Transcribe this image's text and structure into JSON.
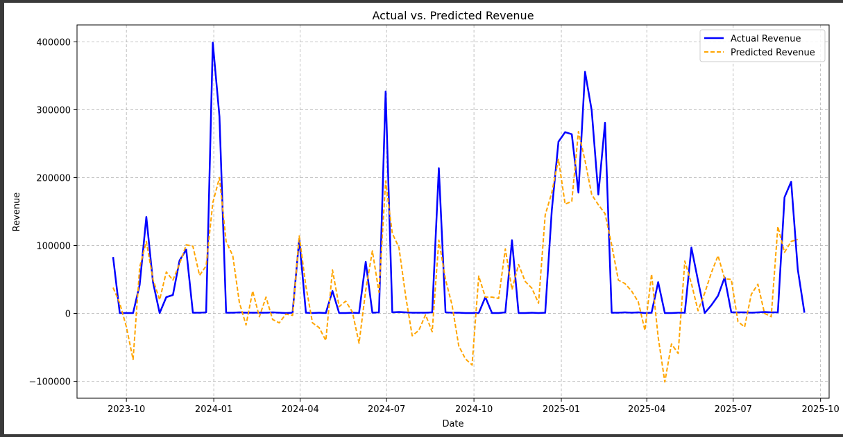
{
  "chart_data": {
    "type": "line",
    "title": "Actual vs. Predicted Revenue",
    "xlabel": "Date",
    "ylabel": "Revenue",
    "x_ticks": [
      "2023-10",
      "2024-01",
      "2024-04",
      "2024-07",
      "2024-10",
      "2025-01",
      "2025-04",
      "2025-07",
      "2025-10"
    ],
    "y_ticks": [
      -100000,
      0,
      100000,
      200000,
      300000,
      400000
    ],
    "y_tick_labels": [
      "−100000",
      "0",
      "100000",
      "200000",
      "300000",
      "400000"
    ],
    "xlim": [
      "2023-08-10",
      "2025-10-10"
    ],
    "ylim": [
      -125000,
      425000
    ],
    "grid": true,
    "legend_position": "top-right",
    "series": [
      {
        "name": "Actual Revenue",
        "color": "#0000ff",
        "style": "solid",
        "points": [
          [
            "2023-09-17",
            83000
          ],
          [
            "2023-09-24",
            500
          ],
          [
            "2023-10-01",
            500
          ],
          [
            "2023-10-08",
            500
          ],
          [
            "2023-10-15",
            42000
          ],
          [
            "2023-10-22",
            142000
          ],
          [
            "2023-10-29",
            46000
          ],
          [
            "2023-11-05",
            500
          ],
          [
            "2023-11-12",
            24000
          ],
          [
            "2023-11-19",
            27000
          ],
          [
            "2023-11-26",
            78000
          ],
          [
            "2023-12-03",
            94000
          ],
          [
            "2023-12-10",
            1000
          ],
          [
            "2023-12-17",
            1000
          ],
          [
            "2023-12-24",
            1500
          ],
          [
            "2023-12-31",
            399000
          ],
          [
            "2024-01-07",
            290000
          ],
          [
            "2024-01-14",
            1000
          ],
          [
            "2024-01-21",
            1000
          ],
          [
            "2024-01-28",
            1500
          ],
          [
            "2024-02-04",
            1000
          ],
          [
            "2024-02-11",
            1000
          ],
          [
            "2024-02-18",
            1000
          ],
          [
            "2024-02-25",
            1000
          ],
          [
            "2024-03-03",
            1500
          ],
          [
            "2024-03-10",
            1000
          ],
          [
            "2024-03-17",
            500
          ],
          [
            "2024-03-24",
            1000
          ],
          [
            "2024-03-31",
            110000
          ],
          [
            "2024-04-07",
            1000
          ],
          [
            "2024-04-14",
            500
          ],
          [
            "2024-04-21",
            1000
          ],
          [
            "2024-04-28",
            500
          ],
          [
            "2024-05-05",
            33000
          ],
          [
            "2024-05-12",
            500
          ],
          [
            "2024-05-19",
            500
          ],
          [
            "2024-05-26",
            1000
          ],
          [
            "2024-06-02",
            500
          ],
          [
            "2024-06-09",
            76000
          ],
          [
            "2024-06-16",
            1000
          ],
          [
            "2024-06-23",
            1500
          ],
          [
            "2024-06-30",
            327000
          ],
          [
            "2024-07-07",
            1500
          ],
          [
            "2024-07-14",
            2000
          ],
          [
            "2024-07-21",
            1500
          ],
          [
            "2024-07-28",
            1000
          ],
          [
            "2024-08-04",
            1000
          ],
          [
            "2024-08-11",
            1000
          ],
          [
            "2024-08-18",
            1500
          ],
          [
            "2024-08-25",
            214000
          ],
          [
            "2024-09-01",
            1500
          ],
          [
            "2024-09-08",
            1000
          ],
          [
            "2024-09-15",
            1000
          ],
          [
            "2024-09-22",
            500
          ],
          [
            "2024-09-29",
            500
          ],
          [
            "2024-10-06",
            500
          ],
          [
            "2024-10-13",
            24000
          ],
          [
            "2024-10-20",
            500
          ],
          [
            "2024-10-27",
            500
          ],
          [
            "2024-11-03",
            1500
          ],
          [
            "2024-11-10",
            108000
          ],
          [
            "2024-11-17",
            500
          ],
          [
            "2024-11-24",
            500
          ],
          [
            "2024-12-01",
            1000
          ],
          [
            "2024-12-08",
            500
          ],
          [
            "2024-12-15",
            1000
          ],
          [
            "2024-12-22",
            152000
          ],
          [
            "2024-12-29",
            253000
          ],
          [
            "2025-01-05",
            267000
          ],
          [
            "2025-01-12",
            264000
          ],
          [
            "2025-01-19",
            178000
          ],
          [
            "2025-01-26",
            356000
          ],
          [
            "2025-02-02",
            299000
          ],
          [
            "2025-02-09",
            175000
          ],
          [
            "2025-02-16",
            281000
          ],
          [
            "2025-02-23",
            1000
          ],
          [
            "2025-03-02",
            1000
          ],
          [
            "2025-03-09",
            1500
          ],
          [
            "2025-03-16",
            1000
          ],
          [
            "2025-03-23",
            1500
          ],
          [
            "2025-03-30",
            500
          ],
          [
            "2025-04-06",
            1000
          ],
          [
            "2025-04-13",
            46000
          ],
          [
            "2025-04-20",
            500
          ],
          [
            "2025-04-27",
            500
          ],
          [
            "2025-05-04",
            1000
          ],
          [
            "2025-05-11",
            1000
          ],
          [
            "2025-05-18",
            97000
          ],
          [
            "2025-05-25",
            48000
          ],
          [
            "2025-06-01",
            500
          ],
          [
            "2025-06-08",
            12000
          ],
          [
            "2025-06-15",
            26000
          ],
          [
            "2025-06-22",
            53000
          ],
          [
            "2025-06-29",
            1500
          ],
          [
            "2025-07-06",
            1500
          ],
          [
            "2025-07-13",
            1500
          ],
          [
            "2025-07-20",
            1000
          ],
          [
            "2025-07-27",
            1500
          ],
          [
            "2025-08-03",
            2000
          ],
          [
            "2025-08-10",
            1500
          ],
          [
            "2025-08-17",
            1500
          ],
          [
            "2025-08-24",
            171000
          ],
          [
            "2025-08-31",
            194000
          ],
          [
            "2025-09-07",
            65000
          ],
          [
            "2025-09-14",
            1000
          ]
        ]
      },
      {
        "name": "Predicted Revenue",
        "color": "#ffa500",
        "style": "dashed",
        "points": [
          [
            "2023-09-17",
            38000
          ],
          [
            "2023-09-24",
            15000
          ],
          [
            "2023-10-01",
            -20000
          ],
          [
            "2023-10-08",
            -68000
          ],
          [
            "2023-10-15",
            68000
          ],
          [
            "2023-10-22",
            106000
          ],
          [
            "2023-10-29",
            50000
          ],
          [
            "2023-11-05",
            20000
          ],
          [
            "2023-11-12",
            61000
          ],
          [
            "2023-11-19",
            49000
          ],
          [
            "2023-11-26",
            73000
          ],
          [
            "2023-12-03",
            101000
          ],
          [
            "2023-12-10",
            99000
          ],
          [
            "2023-12-17",
            56000
          ],
          [
            "2023-12-24",
            70000
          ],
          [
            "2023-12-31",
            163000
          ],
          [
            "2024-01-07",
            200000
          ],
          [
            "2024-01-14",
            106000
          ],
          [
            "2024-01-21",
            85000
          ],
          [
            "2024-01-28",
            16000
          ],
          [
            "2024-02-04",
            -17000
          ],
          [
            "2024-02-11",
            33000
          ],
          [
            "2024-02-18",
            -5000
          ],
          [
            "2024-02-25",
            24000
          ],
          [
            "2024-03-03",
            -9000
          ],
          [
            "2024-03-10",
            -14000
          ],
          [
            "2024-03-17",
            -1000
          ],
          [
            "2024-03-24",
            -3000
          ],
          [
            "2024-03-31",
            114000
          ],
          [
            "2024-04-07",
            40000
          ],
          [
            "2024-04-14",
            -14000
          ],
          [
            "2024-04-21",
            -21000
          ],
          [
            "2024-04-28",
            -40000
          ],
          [
            "2024-05-05",
            64000
          ],
          [
            "2024-05-12",
            10000
          ],
          [
            "2024-05-19",
            18000
          ],
          [
            "2024-05-26",
            2000
          ],
          [
            "2024-06-02",
            -44000
          ],
          [
            "2024-06-09",
            34000
          ],
          [
            "2024-06-16",
            92000
          ],
          [
            "2024-06-23",
            31000
          ],
          [
            "2024-06-30",
            195000
          ],
          [
            "2024-07-07",
            118000
          ],
          [
            "2024-07-14",
            97000
          ],
          [
            "2024-07-21",
            26000
          ],
          [
            "2024-07-28",
            -33000
          ],
          [
            "2024-08-04",
            -25000
          ],
          [
            "2024-08-11",
            -2000
          ],
          [
            "2024-08-18",
            -27000
          ],
          [
            "2024-08-25",
            108000
          ],
          [
            "2024-09-01",
            50000
          ],
          [
            "2024-09-08",
            12000
          ],
          [
            "2024-09-15",
            -48000
          ],
          [
            "2024-09-22",
            -67000
          ],
          [
            "2024-09-29",
            -76000
          ],
          [
            "2024-10-06",
            55000
          ],
          [
            "2024-10-13",
            24000
          ],
          [
            "2024-10-20",
            24000
          ],
          [
            "2024-10-27",
            22000
          ],
          [
            "2024-11-03",
            95000
          ],
          [
            "2024-11-10",
            35000
          ],
          [
            "2024-11-17",
            72000
          ],
          [
            "2024-11-24",
            47000
          ],
          [
            "2024-12-01",
            37000
          ],
          [
            "2024-12-08",
            15000
          ],
          [
            "2024-12-15",
            145000
          ],
          [
            "2024-12-22",
            178000
          ],
          [
            "2024-12-29",
            227000
          ],
          [
            "2025-01-05",
            161000
          ],
          [
            "2025-01-12",
            165000
          ],
          [
            "2025-01-19",
            268000
          ],
          [
            "2025-01-26",
            225000
          ],
          [
            "2025-02-02",
            175000
          ],
          [
            "2025-02-09",
            160000
          ],
          [
            "2025-02-16",
            147000
          ],
          [
            "2025-02-23",
            101000
          ],
          [
            "2025-03-02",
            49000
          ],
          [
            "2025-03-09",
            44000
          ],
          [
            "2025-03-16",
            33000
          ],
          [
            "2025-03-23",
            17000
          ],
          [
            "2025-03-30",
            -25000
          ],
          [
            "2025-04-06",
            58000
          ],
          [
            "2025-04-13",
            -35000
          ],
          [
            "2025-04-20",
            -101000
          ],
          [
            "2025-04-27",
            -45000
          ],
          [
            "2025-05-04",
            -59000
          ],
          [
            "2025-05-11",
            77000
          ],
          [
            "2025-05-18",
            44000
          ],
          [
            "2025-05-25",
            4000
          ],
          [
            "2025-06-01",
            30000
          ],
          [
            "2025-06-08",
            60000
          ],
          [
            "2025-06-15",
            85000
          ],
          [
            "2025-06-22",
            51000
          ],
          [
            "2025-06-29",
            50000
          ],
          [
            "2025-07-06",
            -12000
          ],
          [
            "2025-07-13",
            -20000
          ],
          [
            "2025-07-20",
            28000
          ],
          [
            "2025-07-27",
            43000
          ],
          [
            "2025-08-03",
            0
          ],
          [
            "2025-08-10",
            -5000
          ],
          [
            "2025-08-17",
            128000
          ],
          [
            "2025-08-24",
            90000
          ],
          [
            "2025-08-31",
            106000
          ],
          [
            "2025-09-07",
            109000
          ]
        ]
      }
    ]
  }
}
